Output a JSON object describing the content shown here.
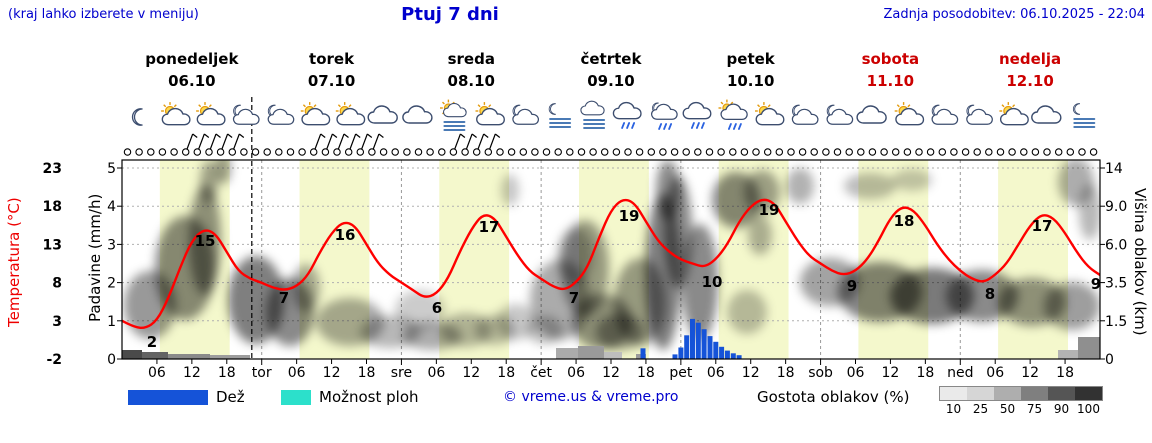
{
  "header": {
    "hint": "(kraj lahko izberete v meniju)",
    "title": "Ptuj 7 dni",
    "updated": "Zadnja posodobitev: 06.10.2025 - 22:04"
  },
  "axes": {
    "temp": {
      "title": "Temperatura (°C)",
      "color": "#ee0000",
      "ticks": [
        "23",
        "18",
        "13",
        "8",
        "3",
        "-2"
      ]
    },
    "precip": {
      "title": "Padavine (mm/h)",
      "ticks": [
        "5",
        "4",
        "3",
        "2",
        "1",
        "0"
      ]
    },
    "cloud": {
      "title": "Višina oblakov (km)",
      "ticks": [
        "14",
        "9.0",
        "6.0",
        "3.5",
        "1.5",
        "0"
      ]
    }
  },
  "days": [
    {
      "name": "ponedeljek",
      "date": "06.10",
      "weekend": false,
      "icons": [
        "moon",
        "sun-cloud",
        "sun-cloud",
        "moon-cloud"
      ]
    },
    {
      "name": "torek",
      "date": "07.10",
      "weekend": false,
      "icons": [
        "moon-cloud",
        "sun-cloud",
        "sun-cloud",
        "cloud"
      ]
    },
    {
      "name": "sreda",
      "date": "08.10",
      "weekend": false,
      "icons": [
        "cloud",
        "fog-sun",
        "sun-cloud",
        "moon-cloud"
      ]
    },
    {
      "name": "četrtek",
      "date": "09.10",
      "weekend": false,
      "icons": [
        "moon-fog",
        "fog",
        "rain",
        "rain-moon"
      ]
    },
    {
      "name": "petek",
      "date": "10.10",
      "weekend": false,
      "icons": [
        "rain",
        "rain-sun",
        "sun-cloud",
        "moon-cloud"
      ]
    },
    {
      "name": "sobota",
      "date": "11.10",
      "weekend": true,
      "icons": [
        "moon-cloud",
        "cloud",
        "sun-cloud",
        "moon-cloud"
      ]
    },
    {
      "name": "nedelja",
      "date": "12.10",
      "weekend": true,
      "icons": [
        "moon-cloud",
        "sun-cloud",
        "cloud",
        "moon-fog"
      ]
    }
  ],
  "x_axis": {
    "hour_labels": [
      "06",
      "12",
      "18"
    ],
    "day_abbrevs": [
      "tor",
      "sre",
      "čet",
      "pet",
      "sob",
      "ned"
    ]
  },
  "wind": {
    "symbol": "calm-circle",
    "count": 84,
    "barb_indices": [
      5,
      6,
      7,
      8,
      9,
      16,
      17,
      18,
      19,
      20,
      21,
      28,
      29,
      30,
      31
    ]
  },
  "now_hour": 22.3,
  "chart_data": {
    "type": "line",
    "title": "Ptuj 7 dni",
    "x_unit": "hours from Mon 06.10 00:00",
    "x_range": [
      0,
      168
    ],
    "temp_axis_range": [
      -2,
      23
    ],
    "precip_axis_range_mmh": [
      0,
      5
    ],
    "cloud_height_ticks_km": [
      0,
      1.5,
      3.5,
      6.0,
      9.0,
      14
    ],
    "daylight_hours": [
      6.5,
      18.5
    ],
    "series": [
      {
        "name": "Temperatura",
        "type": "line",
        "color": "#ff0000",
        "x_hours": [
          0,
          2,
          4,
          6,
          8,
          10,
          12,
          14,
          16,
          18,
          20,
          22,
          24,
          26,
          28,
          30,
          32,
          34,
          36,
          38,
          40,
          42,
          44,
          46,
          48,
          50,
          52,
          54,
          56,
          58,
          60,
          62,
          64,
          66,
          68,
          70,
          72,
          74,
          76,
          78,
          80,
          82,
          84,
          86,
          88,
          90,
          92,
          94,
          96,
          98,
          100,
          102,
          104,
          106,
          108,
          110,
          112,
          114,
          116,
          118,
          120,
          122,
          124,
          126,
          128,
          130,
          132,
          134,
          136,
          138,
          140,
          142,
          144,
          146,
          148,
          150,
          152,
          154,
          156,
          158,
          160,
          162,
          164,
          166,
          168
        ],
        "values": [
          3,
          2.2,
          2,
          3,
          6,
          10,
          13.5,
          15,
          14.5,
          12,
          9.5,
          8.5,
          8,
          7.3,
          7,
          7.5,
          9,
          12,
          14.5,
          16,
          15.5,
          13,
          10.5,
          9,
          8,
          7,
          6,
          6.5,
          8.5,
          12,
          15,
          17,
          16.5,
          14,
          11.5,
          9.5,
          8.5,
          7.5,
          7,
          8,
          10,
          14,
          17.5,
          19,
          18.5,
          16,
          13.5,
          12,
          11,
          10.5,
          10,
          11,
          13,
          16,
          18,
          19,
          18.5,
          16,
          13.5,
          11.5,
          10.5,
          9.5,
          9,
          9.5,
          11,
          13.5,
          16.5,
          18,
          17.5,
          15.5,
          13,
          11,
          9.5,
          8.5,
          8,
          9,
          10.5,
          13,
          15.5,
          17,
          16.5,
          14.5,
          12,
          10,
          9
        ]
      },
      {
        "name": "Dež",
        "type": "bar",
        "color": "#1553d8",
        "x_hours": [
          89.5,
          95,
          96,
          97,
          98,
          99,
          100,
          101,
          102,
          103,
          104,
          105,
          106
        ],
        "values_mmh": [
          0.28,
          0.12,
          0.3,
          0.62,
          1.05,
          0.95,
          0.78,
          0.6,
          0.45,
          0.32,
          0.22,
          0.15,
          0.1
        ]
      }
    ],
    "point_labels": [
      {
        "x": 152,
        "y": 347,
        "t": "2"
      },
      {
        "x": 205,
        "y": 246,
        "t": "15"
      },
      {
        "x": 284,
        "y": 303,
        "t": "7"
      },
      {
        "x": 345,
        "y": 240,
        "t": "16"
      },
      {
        "x": 437,
        "y": 313,
        "t": "6"
      },
      {
        "x": 489,
        "y": 232,
        "t": "17"
      },
      {
        "x": 574,
        "y": 303,
        "t": "7"
      },
      {
        "x": 629,
        "y": 221,
        "t": "19"
      },
      {
        "x": 712,
        "y": 287,
        "t": "10"
      },
      {
        "x": 769,
        "y": 215,
        "t": "19"
      },
      {
        "x": 852,
        "y": 291,
        "t": "9"
      },
      {
        "x": 904,
        "y": 226,
        "t": "18"
      },
      {
        "x": 990,
        "y": 299,
        "t": "8"
      },
      {
        "x": 1042,
        "y": 231,
        "t": "17"
      },
      {
        "x": 1096,
        "y": 289,
        "t": "9"
      }
    ],
    "cloud_blobs": [
      [
        150,
        305,
        26,
        34,
        0.4
      ],
      [
        185,
        268,
        30,
        52,
        0.45
      ],
      [
        205,
        240,
        16,
        55,
        0.42
      ],
      [
        209,
        182,
        9,
        22,
        0.35
      ],
      [
        223,
        168,
        8,
        16,
        0.38
      ],
      [
        256,
        300,
        28,
        44,
        0.5
      ],
      [
        290,
        312,
        24,
        34,
        0.46
      ],
      [
        306,
        288,
        14,
        24,
        0.32
      ],
      [
        350,
        322,
        34,
        24,
        0.33
      ],
      [
        390,
        332,
        30,
        16,
        0.28
      ],
      [
        420,
        310,
        25,
        20,
        0.2
      ],
      [
        432,
        336,
        30,
        14,
        0.32
      ],
      [
        466,
        330,
        26,
        17,
        0.28
      ],
      [
        495,
        330,
        20,
        15,
        0.25
      ],
      [
        510,
        190,
        9,
        16,
        0.22
      ],
      [
        516,
        322,
        20,
        18,
        0.22
      ],
      [
        545,
        330,
        18,
        14,
        0.25
      ],
      [
        560,
        300,
        30,
        40,
        0.33
      ],
      [
        575,
        256,
        18,
        28,
        0.26
      ],
      [
        585,
        268,
        24,
        48,
        0.38
      ],
      [
        602,
        322,
        30,
        28,
        0.42
      ],
      [
        620,
        332,
        24,
        18,
        0.36
      ],
      [
        640,
        302,
        26,
        44,
        0.38
      ],
      [
        663,
        272,
        18,
        78,
        0.5
      ],
      [
        668,
        190,
        12,
        30,
        0.45
      ],
      [
        678,
        232,
        14,
        56,
        0.46
      ],
      [
        700,
        282,
        18,
        58,
        0.46
      ],
      [
        736,
        200,
        24,
        28,
        0.46
      ],
      [
        747,
        312,
        20,
        22,
        0.26
      ],
      [
        760,
        235,
        12,
        20,
        0.3
      ],
      [
        762,
        192,
        18,
        22,
        0.36
      ],
      [
        800,
        186,
        14,
        18,
        0.3
      ],
      [
        830,
        282,
        30,
        24,
        0.36
      ],
      [
        870,
        186,
        26,
        13,
        0.26
      ],
      [
        880,
        292,
        42,
        30,
        0.48
      ],
      [
        912,
        180,
        20,
        11,
        0.22
      ],
      [
        932,
        296,
        42,
        28,
        0.52
      ],
      [
        982,
        296,
        36,
        26,
        0.46
      ],
      [
        1032,
        302,
        34,
        24,
        0.42
      ],
      [
        1072,
        306,
        28,
        24,
        0.38
      ],
      [
        1076,
        182,
        18,
        24,
        0.32
      ],
      [
        1090,
        212,
        11,
        28,
        0.28
      ]
    ],
    "ground_gray_bands": [
      [
        122,
        20,
        9,
        "#4a4a4a"
      ],
      [
        142,
        26,
        7,
        "#636363"
      ],
      [
        168,
        42,
        5,
        "#8a8a8a"
      ],
      [
        210,
        40,
        4,
        "#9d9d9d"
      ],
      [
        556,
        22,
        11,
        "#ababab"
      ],
      [
        578,
        26,
        13,
        "#9a9a9a"
      ],
      [
        604,
        18,
        7,
        "#bdbdbd"
      ],
      [
        636,
        10,
        5,
        "#9a9a9a"
      ],
      [
        1058,
        20,
        9,
        "#b3b3b3"
      ],
      [
        1078,
        22,
        22,
        "#8f8f8f"
      ]
    ]
  },
  "legend": {
    "rain_label": "Dež",
    "rain_color": "#1553d8",
    "showers_label": "Možnost ploh",
    "showers_color": "#2ce0cb",
    "copyright": "© vreme.us & vreme.pro",
    "density_label": "Gostota oblakov (%)",
    "density_ticks": [
      "10",
      "25",
      "50",
      "75",
      "90",
      "100"
    ],
    "density_colors": [
      "#eaeaea",
      "#d6d6d6",
      "#aeaeae",
      "#7f7f7f",
      "#555555",
      "#323232"
    ]
  }
}
